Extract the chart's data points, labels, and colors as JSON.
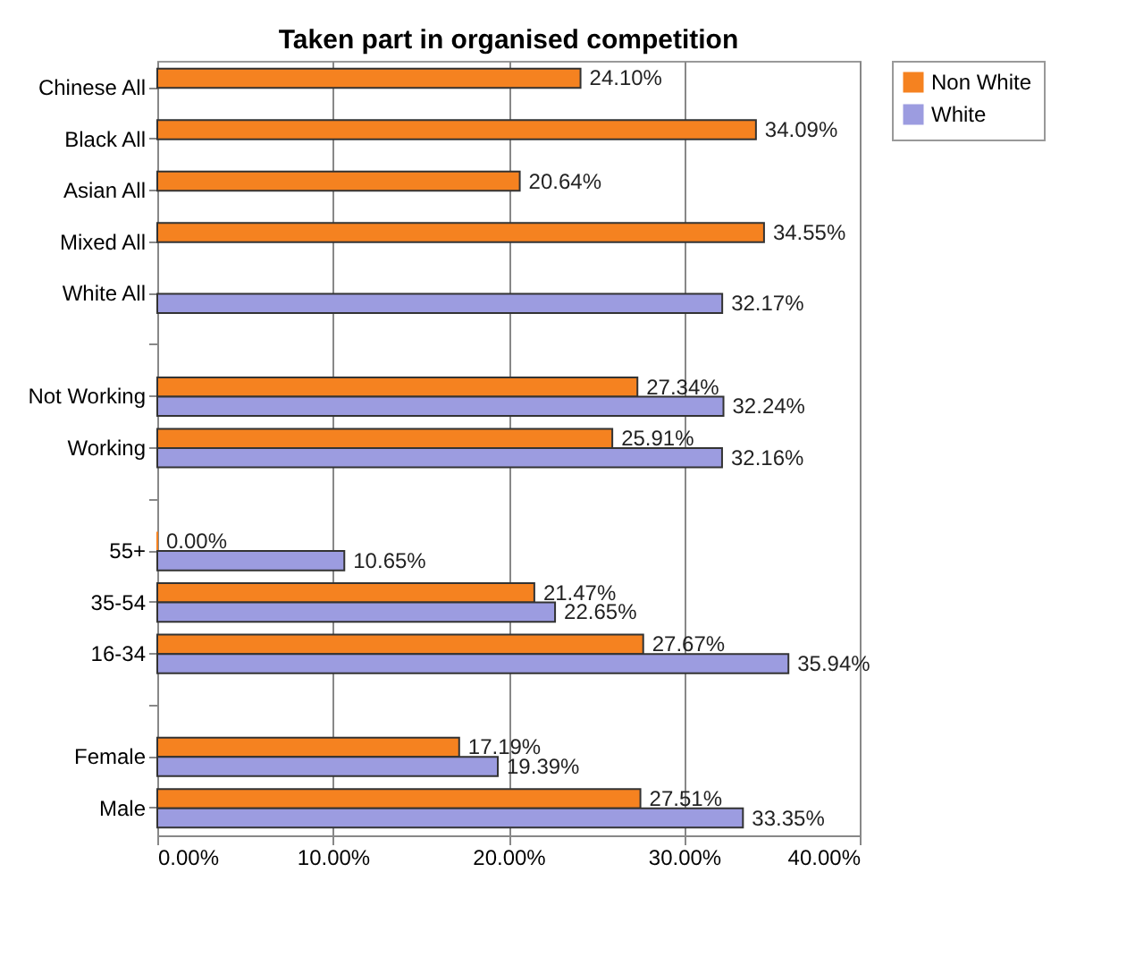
{
  "chart_data": {
    "type": "bar",
    "orientation": "horizontal",
    "title": "Taken part in organised competition",
    "categories": [
      "Chinese All",
      "Black All",
      "Asian All",
      "Mixed All",
      "White All",
      null,
      "Not Working",
      "Working",
      null,
      "55+",
      "35-54",
      "16-34",
      null,
      "Female",
      "Male"
    ],
    "series": [
      {
        "name": "Non White",
        "color": "#f58220",
        "values": [
          24.1,
          34.09,
          20.64,
          34.55,
          null,
          null,
          27.34,
          25.91,
          null,
          0.0,
          21.47,
          27.67,
          null,
          17.19,
          27.51
        ],
        "value_labels": [
          "24.10%",
          "34.09%",
          "20.64%",
          "34.55%",
          null,
          null,
          "27.34%",
          "25.91%",
          null,
          "0.00%",
          "21.47%",
          "27.67%",
          null,
          "17.19%",
          "27.51%"
        ]
      },
      {
        "name": "White",
        "color": "#9c9ce0",
        "values": [
          null,
          null,
          null,
          null,
          32.17,
          null,
          32.24,
          32.16,
          null,
          10.65,
          22.65,
          35.94,
          null,
          19.39,
          33.35
        ],
        "value_labels": [
          null,
          null,
          null,
          null,
          "32.17%",
          null,
          "32.24%",
          "32.16%",
          null,
          "10.65%",
          "22.65%",
          "35.94%",
          null,
          "19.39%",
          "33.35%"
        ]
      }
    ],
    "xlim": [
      0,
      40
    ],
    "xticks": [
      {
        "value": 0,
        "label": "0.00%"
      },
      {
        "value": 10,
        "label": "10.00%"
      },
      {
        "value": 20,
        "label": "20.00%"
      },
      {
        "value": 30,
        "label": "30.00%"
      },
      {
        "value": 40,
        "label": "40.00%"
      }
    ],
    "grid": "x",
    "legend": "right"
  }
}
